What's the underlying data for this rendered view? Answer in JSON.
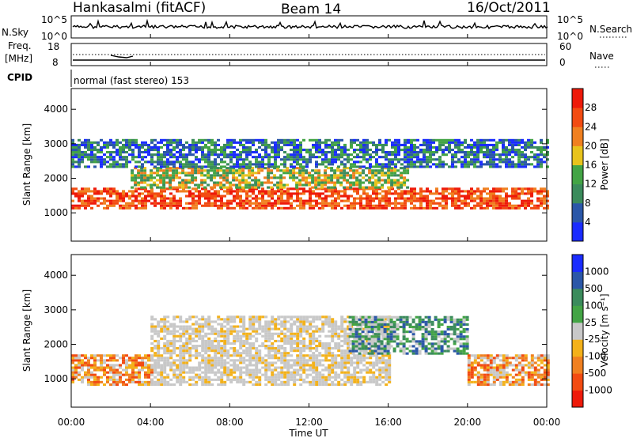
{
  "header": {
    "station": "Hankasalmi (fitACF)",
    "beam": "Beam 14",
    "date": "16/Oct/2011"
  },
  "panels": {
    "nsky": {
      "left_label": "N.Sky",
      "right_label": "N.Search",
      "tick_top": "10^5",
      "tick_bottom": "10^0"
    },
    "freq": {
      "left_label_1": "Freq.",
      "left_label_2": "[MHz]",
      "left_ticks": [
        "18",
        "8"
      ],
      "right_label": "Nave",
      "right_ticks": [
        "60",
        "0"
      ]
    },
    "cpid": {
      "label": "CPID",
      "value": "normal (fast stereo) 153"
    }
  },
  "colors": {
    "power_scale": [
      "#1a2cff",
      "#2b57a8",
      "#3b8b5c",
      "#43a445",
      "#e8c31c",
      "#f08020",
      "#f24b12",
      "#ee1a0a"
    ],
    "velocity_scale": [
      "#ee1a0a",
      "#f24b12",
      "#f08020",
      "#f3b11a",
      "#c8c8c8",
      "#43a445",
      "#3b8b5c",
      "#2b57a8",
      "#1a2cff"
    ]
  },
  "chart_data": [
    {
      "type": "heatmap",
      "title": "",
      "xlabel": "Time UT",
      "ylabel": "Slant Range [km]",
      "x_ticks": [
        "00:00",
        "04:00",
        "08:00",
        "12:00",
        "16:00",
        "20:00",
        "00:00"
      ],
      "y_ticks": [
        "1000",
        "2000",
        "3000",
        "4000"
      ],
      "xlim": [
        0,
        24
      ],
      "ylim": [
        180,
        4600
      ],
      "colorbar": {
        "label": "Power [dB]",
        "ticks": [
          "28",
          "24",
          "20",
          "16",
          "12",
          "8",
          "4"
        ],
        "range": [
          0,
          30
        ]
      },
      "bands": [
        {
          "range_km": [
            1100,
            1700
          ],
          "t": [
            0,
            24
          ],
          "level": "high"
        },
        {
          "range_km": [
            1700,
            2300
          ],
          "t": [
            3,
            17
          ],
          "level": "medium"
        },
        {
          "range_km": [
            2300,
            3100
          ],
          "t": [
            0,
            24
          ],
          "level": "low"
        }
      ]
    },
    {
      "type": "heatmap",
      "title": "",
      "xlabel": "Time UT",
      "ylabel": "Slant Range [km]",
      "x_ticks": [
        "00:00",
        "04:00",
        "08:00",
        "12:00",
        "16:00",
        "20:00",
        "00:00"
      ],
      "y_ticks": [
        "1000",
        "2000",
        "3000",
        "4000"
      ],
      "xlim": [
        0,
        24
      ],
      "ylim": [
        180,
        4600
      ],
      "colorbar": {
        "label": "Velocity [m s⁻¹]",
        "ticks": [
          "1000",
          "500",
          "100",
          "25",
          "-25",
          "-100",
          "-500",
          "-1000"
        ]
      },
      "bands": [
        {
          "range_km": [
            800,
            1700
          ],
          "t": [
            0,
            4
          ],
          "level": "negative"
        },
        {
          "range_km": [
            800,
            2800
          ],
          "t": [
            4,
            16
          ],
          "level": "near-zero"
        },
        {
          "range_km": [
            1700,
            2800
          ],
          "t": [
            14,
            20
          ],
          "level": "positive"
        },
        {
          "range_km": [
            800,
            1700
          ],
          "t": [
            20,
            24
          ],
          "level": "negative"
        }
      ]
    }
  ]
}
